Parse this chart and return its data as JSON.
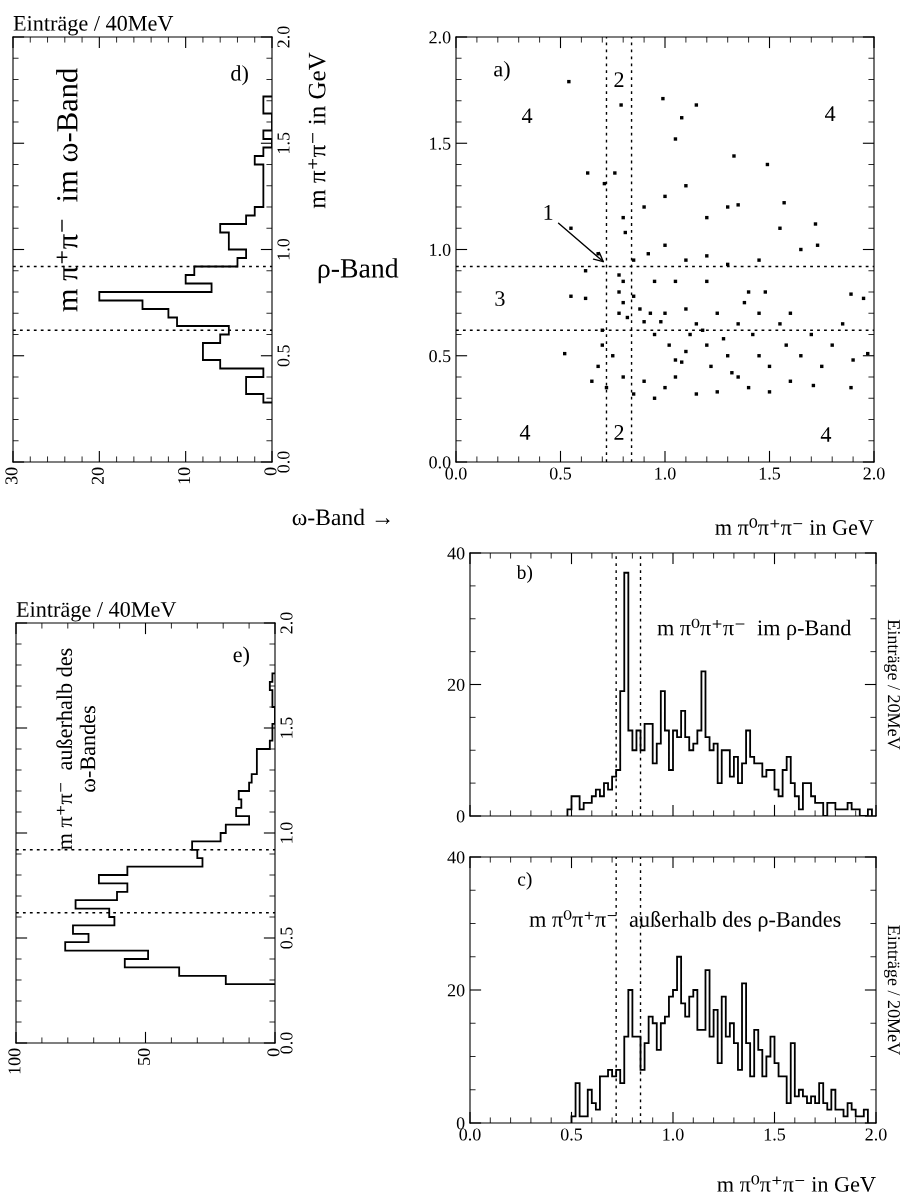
{
  "chart_data": [
    {
      "type": "histogram",
      "orientation": "horizontal",
      "color": "#000000",
      "xlabel": "Einträge / 40MeV",
      "bins": [
        0.28,
        0.32,
        0.36,
        0.4,
        0.44,
        0.48,
        0.52,
        0.56,
        0.6,
        0.64,
        0.68,
        0.72,
        0.76,
        0.8,
        0.84,
        0.88,
        0.92,
        0.96,
        1.0,
        1.04,
        1.08,
        1.12,
        1.16,
        1.2,
        1.24,
        1.28,
        1.32,
        1.36,
        1.4,
        1.44,
        1.48,
        1.52,
        1.56,
        1.6,
        1.64,
        1.68,
        1.72
      ],
      "values": [
        1,
        3,
        3,
        1,
        6,
        8,
        8,
        6,
        5,
        11,
        12,
        15,
        20,
        7,
        10,
        9,
        4,
        3,
        5,
        5,
        6,
        3,
        2,
        1,
        1,
        1,
        1,
        1,
        2,
        1,
        0,
        1,
        0,
        0,
        1,
        1
      ],
      "xlim": [
        30,
        0
      ],
      "xticks": [
        0,
        10,
        20,
        30
      ],
      "ylim": [
        0,
        2
      ],
      "yticks": [
        {
          "value": 0,
          "label": "0.0"
        },
        {
          "value": 0.5,
          "label": "0.5"
        },
        {
          "value": 1,
          "label": "1.0"
        },
        {
          "value": 1.5,
          "label": "1.5"
        },
        {
          "value": 2,
          "label": "2.0"
        }
      ],
      "ref_lines": [
        {
          "axis": "y",
          "value": 0.62,
          "line_style": "dotted"
        },
        {
          "axis": "y",
          "value": 0.92,
          "line_style": "dotted"
        }
      ],
      "annotations": [
        "m π⁺π⁻  im ω-Band",
        "d)"
      ]
    },
    {
      "type": "scatter",
      "color": "#000000",
      "marker": "square",
      "ylabel": "m π⁺π⁻ in GeV",
      "xlabel": "m π⁰π⁺π⁻ in GeV",
      "x": [
        0.54,
        0.52,
        0.99,
        1.15,
        1.08,
        1.05,
        1.33,
        1.49,
        0.63,
        0.71,
        0.76,
        0.79,
        1.97,
        1.72,
        1.73,
        1.57,
        1.35,
        0.55,
        0.55,
        0.62,
        0.81,
        1.89,
        1.95,
        1.89,
        1.71,
        0.78,
        0.8,
        0.78,
        0.8,
        0.78,
        0.82,
        0.85,
        0.88,
        0.9,
        0.93,
        0.95,
        0.98,
        1.0,
        1.02,
        1.05,
        1.08,
        1.1,
        1.12,
        1.15,
        1.18,
        1.2,
        1.22,
        1.25,
        1.28,
        1.3,
        1.32,
        1.35,
        1.38,
        1.4,
        1.42,
        1.45,
        1.48,
        1.5,
        1.55,
        1.58,
        1.6,
        1.65,
        1.7,
        1.75,
        1.8,
        1.85,
        1.9,
        0.7,
        0.68,
        0.72,
        0.65,
        0.75,
        0.8,
        0.85,
        0.9,
        0.95,
        1.0,
        1.05,
        1.15,
        1.25,
        1.4,
        1.5,
        1.6,
        0.85,
        0.92,
        1.0,
        1.1,
        1.2,
        1.3,
        1.45,
        1.55,
        1.65,
        0.9,
        1.0,
        1.1,
        1.2,
        1.3,
        0.8,
        0.7,
        0.62,
        0.68,
        1.1,
        1.2,
        1.35,
        1.45,
        0.95,
        1.05
      ],
      "values": [
        1.79,
        0.51,
        1.71,
        1.68,
        1.62,
        1.52,
        1.44,
        1.4,
        1.36,
        1.31,
        1.36,
        1.68,
        0.51,
        1.12,
        1.02,
        1.22,
        1.21,
        1.1,
        0.78,
        0.77,
        1.08,
        0.79,
        0.77,
        0.35,
        0.36,
        0.88,
        0.85,
        0.8,
        0.75,
        0.7,
        0.68,
        0.78,
        0.72,
        0.66,
        0.7,
        0.6,
        0.66,
        0.7,
        0.55,
        0.48,
        0.47,
        0.52,
        0.6,
        0.65,
        0.62,
        0.55,
        0.45,
        0.7,
        0.58,
        0.5,
        0.42,
        0.4,
        0.75,
        0.8,
        0.6,
        0.5,
        0.8,
        0.45,
        0.65,
        0.55,
        0.7,
        0.5,
        0.6,
        0.45,
        0.55,
        0.65,
        0.48,
        0.55,
        0.45,
        0.35,
        0.38,
        0.5,
        0.4,
        0.32,
        0.38,
        0.3,
        0.35,
        0.4,
        0.32,
        0.33,
        0.35,
        0.33,
        0.38,
        0.95,
        0.98,
        1.02,
        0.95,
        0.97,
        0.93,
        0.95,
        1.1,
        1.0,
        1.2,
        1.25,
        1.3,
        1.15,
        1.2,
        1.15,
        0.62,
        0.9,
        0.98,
        0.72,
        0.85,
        0.65,
        0.7,
        0.85,
        0.85
      ],
      "xlim": [
        0,
        2
      ],
      "xticks": [
        {
          "value": 0,
          "label": "0.0"
        },
        {
          "value": 0.5,
          "label": "0.5"
        },
        {
          "value": 1,
          "label": "1.0"
        },
        {
          "value": 1.5,
          "label": "1.5"
        },
        {
          "value": 2,
          "label": "2.0"
        }
      ],
      "ylim": [
        0,
        2
      ],
      "yticks": [
        {
          "value": 0,
          "label": "0.0"
        },
        {
          "value": 0.5,
          "label": "0.5"
        },
        {
          "value": 1,
          "label": "1.0"
        },
        {
          "value": 1.5,
          "label": "1.5"
        },
        {
          "value": 2,
          "label": "2.0"
        }
      ],
      "ref_lines": [
        {
          "axis": "x",
          "value": 0.72,
          "line_style": "dotted"
        },
        {
          "axis": "x",
          "value": 0.84,
          "line_style": "dotted"
        },
        {
          "axis": "y",
          "value": 0.62,
          "line_style": "dotted"
        },
        {
          "axis": "y",
          "value": 0.92,
          "line_style": "dotted"
        }
      ],
      "annotations": [
        {
          "text": "1",
          "x": 0.72,
          "y": 0.93
        },
        "2",
        "2",
        "3",
        "4",
        "4",
        "4",
        "4",
        "a)",
        "ρ-Band",
        "ω-Band →"
      ]
    },
    {
      "type": "histogram",
      "orientation": "horizontal",
      "color": "#000000",
      "xlabel": "Einträge / 40MeV",
      "bins": [
        0.28,
        0.32,
        0.36,
        0.4,
        0.44,
        0.48,
        0.52,
        0.56,
        0.6,
        0.64,
        0.68,
        0.72,
        0.76,
        0.8,
        0.84,
        0.88,
        0.92,
        0.96,
        1.0,
        1.04,
        1.08,
        1.12,
        1.16,
        1.2,
        1.24,
        1.28,
        1.32,
        1.36,
        1.4,
        1.44,
        1.48,
        1.52,
        1.56,
        1.6,
        1.64,
        1.68,
        1.72,
        1.76
      ],
      "values": [
        19,
        37,
        58,
        49,
        81,
        72,
        78,
        62,
        64,
        77,
        61,
        57,
        68,
        57,
        28,
        30,
        32,
        21,
        19,
        10,
        15,
        13,
        14,
        10,
        9,
        7,
        7,
        7,
        2,
        1,
        1,
        0,
        0,
        1,
        1,
        2,
        1
      ],
      "xlim": [
        100,
        0
      ],
      "xticks": [
        0,
        50,
        100
      ],
      "ylim": [
        0,
        2
      ],
      "yticks": [
        {
          "value": 0,
          "label": "0.0"
        },
        {
          "value": 0.5,
          "label": "0.5"
        },
        {
          "value": 1,
          "label": "1.0"
        },
        {
          "value": 1.5,
          "label": "1.5"
        },
        {
          "value": 2,
          "label": "2.0"
        }
      ],
      "ref_lines": [
        {
          "axis": "y",
          "value": 0.62,
          "line_style": "dotted"
        },
        {
          "axis": "y",
          "value": 0.92,
          "line_style": "dotted"
        }
      ],
      "annotations": [
        "m π⁺π⁻  außerhalb des\nω-Bandes",
        "e)"
      ]
    },
    {
      "type": "histogram",
      "color": "#000000",
      "ylabel": "Einträge / 20MeV",
      "tick_labels": "y",
      "bins": [
        0.48,
        0.5,
        0.52,
        0.54,
        0.56,
        0.58,
        0.6,
        0.62,
        0.64,
        0.66,
        0.68,
        0.7,
        0.72,
        0.74,
        0.76,
        0.78,
        0.8,
        0.82,
        0.84,
        0.86,
        0.88,
        0.9,
        0.92,
        0.94,
        0.96,
        0.98,
        1.0,
        1.02,
        1.04,
        1.06,
        1.08,
        1.1,
        1.12,
        1.14,
        1.16,
        1.18,
        1.2,
        1.22,
        1.24,
        1.26,
        1.28,
        1.3,
        1.32,
        1.34,
        1.36,
        1.38,
        1.4,
        1.42,
        1.44,
        1.46,
        1.48,
        1.5,
        1.52,
        1.54,
        1.56,
        1.58,
        1.6,
        1.62,
        1.64,
        1.66,
        1.68,
        1.7,
        1.72,
        1.74,
        1.76,
        1.78,
        1.8,
        1.82,
        1.84,
        1.86,
        1.88,
        1.9,
        1.92,
        1.94,
        1.96,
        1.98
      ],
      "values": [
        1,
        3,
        3,
        1,
        2,
        2,
        3,
        4,
        3,
        5,
        4,
        6,
        7,
        19,
        37,
        13,
        10,
        13,
        10,
        14,
        14,
        8,
        11,
        19,
        13,
        7,
        13,
        12,
        16,
        12,
        10,
        11,
        13,
        22,
        12,
        10,
        11,
        5,
        10,
        10,
        6,
        9,
        5,
        8,
        13,
        9,
        8,
        8,
        6,
        7,
        7,
        4,
        3,
        7,
        9,
        5,
        3,
        1,
        5,
        5,
        3,
        2,
        2,
        0,
        2,
        2,
        1,
        1,
        1,
        2,
        1,
        1,
        0,
        0,
        1
      ],
      "xlim": [
        0,
        2
      ],
      "xticks": [
        {
          "value": 0,
          "label": null
        },
        {
          "value": 0.5,
          "label": null
        },
        {
          "value": 1,
          "label": null
        },
        {
          "value": 1.5,
          "label": null
        },
        {
          "value": 2,
          "label": null
        }
      ],
      "ylim": [
        0,
        40
      ],
      "yticks": [
        0,
        20,
        40
      ],
      "ref_lines": [
        {
          "axis": "x",
          "value": 0.72,
          "line_style": "dotted"
        },
        {
          "axis": "x",
          "value": 0.84,
          "line_style": "dotted"
        }
      ],
      "annotations": [
        "b)",
        "m π⁰π⁺π⁻  im ρ-Band"
      ]
    },
    {
      "type": "histogram",
      "color": "#000000",
      "ylabel": "Einträge / 20MeV",
      "xlabel": "m π⁰π⁺π⁻ in GeV",
      "bins": [
        0.5,
        0.52,
        0.54,
        0.56,
        0.58,
        0.6,
        0.62,
        0.64,
        0.66,
        0.68,
        0.7,
        0.72,
        0.74,
        0.76,
        0.78,
        0.8,
        0.82,
        0.84,
        0.86,
        0.88,
        0.9,
        0.92,
        0.94,
        0.96,
        0.98,
        1.0,
        1.02,
        1.04,
        1.06,
        1.08,
        1.1,
        1.12,
        1.14,
        1.16,
        1.18,
        1.2,
        1.22,
        1.24,
        1.26,
        1.28,
        1.3,
        1.32,
        1.34,
        1.36,
        1.38,
        1.4,
        1.42,
        1.44,
        1.46,
        1.48,
        1.5,
        1.52,
        1.54,
        1.56,
        1.58,
        1.6,
        1.62,
        1.64,
        1.66,
        1.68,
        1.7,
        1.72,
        1.74,
        1.76,
        1.78,
        1.8,
        1.82,
        1.84,
        1.86,
        1.88,
        1.9,
        1.92,
        1.94,
        1.96
      ],
      "values": [
        1,
        6,
        1,
        1,
        5,
        3,
        2,
        7,
        7,
        8,
        7,
        8,
        6,
        13,
        20,
        13,
        13,
        8,
        12,
        16,
        15,
        11,
        15,
        16,
        19,
        20,
        25,
        18,
        16,
        19,
        20,
        14,
        14,
        23,
        13,
        17,
        9,
        19,
        13,
        15,
        12,
        8,
        21,
        12,
        7,
        14,
        11,
        7,
        10,
        13,
        9,
        7,
        7,
        3,
        12,
        4,
        5,
        4,
        3,
        4,
        3,
        6,
        3,
        2,
        5,
        2,
        2,
        1,
        3,
        2,
        1,
        1,
        2
      ],
      "xlim": [
        0,
        2
      ],
      "xticks": [
        {
          "value": 0,
          "label": "0.0"
        },
        {
          "value": 0.5,
          "label": "0.5"
        },
        {
          "value": 1,
          "label": "1.0"
        },
        {
          "value": 1.5,
          "label": "1.5"
        },
        {
          "value": 2,
          "label": "2.0"
        }
      ],
      "ylim": [
        0,
        40
      ],
      "yticks": [
        0,
        20,
        40
      ],
      "ref_lines": [
        {
          "axis": "x",
          "value": 0.72,
          "line_style": "dotted"
        },
        {
          "axis": "x",
          "value": 0.84,
          "line_style": "dotted"
        }
      ],
      "annotations": [
        "c)",
        "m π⁰π⁺π⁻  außerhalb des ρ-Bandes"
      ]
    }
  ]
}
